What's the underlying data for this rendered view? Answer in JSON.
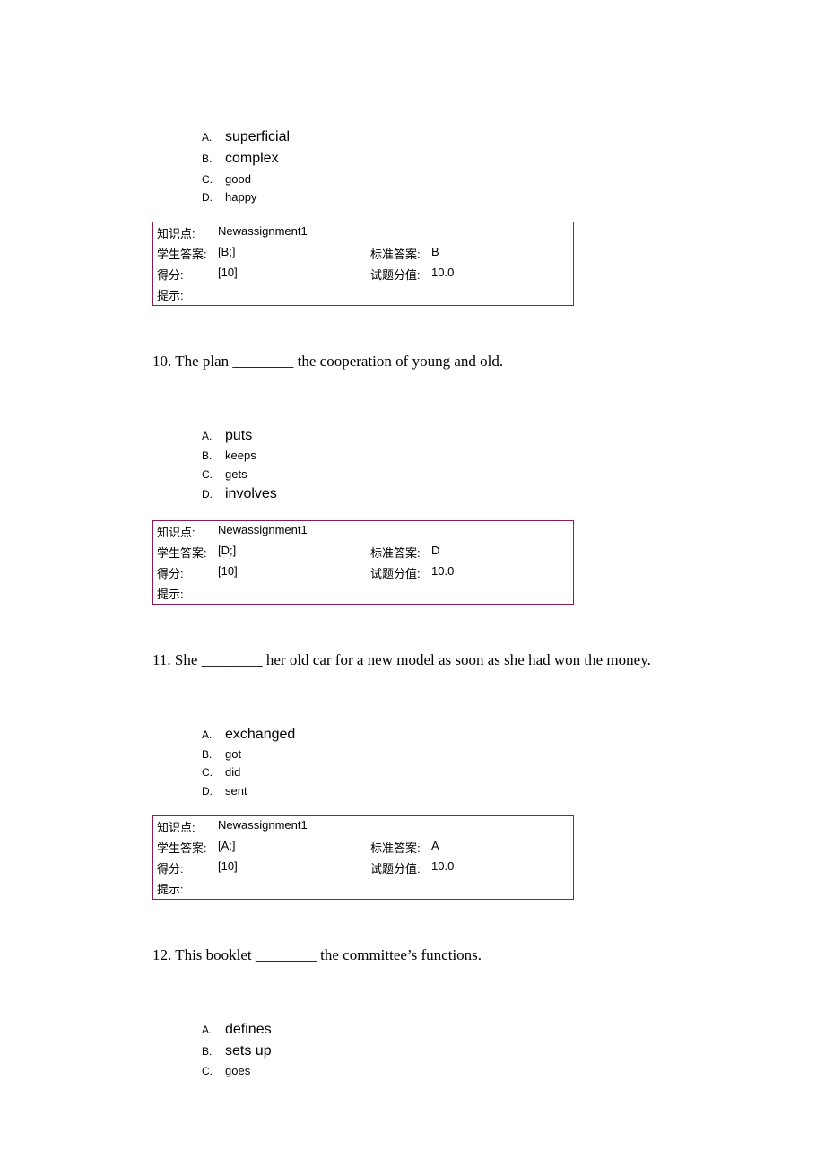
{
  "q9": {
    "opts": [
      {
        "letter": "A.",
        "text": "superficial",
        "large": true
      },
      {
        "letter": "B.",
        "text": "complex",
        "large": true
      },
      {
        "letter": "C.",
        "text": "good",
        "large": false
      },
      {
        "letter": "D.",
        "text": "happy",
        "large": false
      }
    ],
    "box": {
      "kp_label": "知识点:",
      "kp": "Newassignment1",
      "sa_label": "学生答案:",
      "sa": "[B;]",
      "ca_label": "标准答案:",
      "ca": "B",
      "score_label": "得分:",
      "score": "[10]",
      "max_label": "试题分值:",
      "max": "10.0",
      "hint_label": "提示:"
    }
  },
  "q10": {
    "stem": "10. The plan ________ the cooperation of young and old.",
    "opts": [
      {
        "letter": "A.",
        "text": "puts",
        "large": true
      },
      {
        "letter": "B.",
        "text": "keeps",
        "large": false
      },
      {
        "letter": "C.",
        "text": "gets",
        "large": false
      },
      {
        "letter": "D.",
        "text": "involves",
        "large": true
      }
    ],
    "box": {
      "kp_label": "知识点:",
      "kp": "Newassignment1",
      "sa_label": "学生答案:",
      "sa": "[D;]",
      "ca_label": "标准答案:",
      "ca": "D",
      "score_label": "得分:",
      "score": "[10]",
      "max_label": "试题分值:",
      "max": "10.0",
      "hint_label": "提示:"
    }
  },
  "q11": {
    "stem": "11. She ________ her old car for a new model as soon as she had won the money.",
    "opts": [
      {
        "letter": "A.",
        "text": "exchanged",
        "large": true
      },
      {
        "letter": "B.",
        "text": "got",
        "large": false
      },
      {
        "letter": "C.",
        "text": "did",
        "large": false
      },
      {
        "letter": "D.",
        "text": "sent",
        "large": false
      }
    ],
    "box": {
      "kp_label": "知识点:",
      "kp": "Newassignment1",
      "sa_label": "学生答案:",
      "sa": "[A;]",
      "ca_label": "标准答案:",
      "ca": "A",
      "score_label": "得分:",
      "score": "[10]",
      "max_label": "试题分值:",
      "max": "10.0",
      "hint_label": "提示:"
    }
  },
  "q12": {
    "stem": "12. This booklet ________ the committee’s functions.",
    "opts": [
      {
        "letter": "A.",
        "text": "defines",
        "large": true
      },
      {
        "letter": "B.",
        "text": "sets up",
        "large": true
      },
      {
        "letter": "C.",
        "text": "goes",
        "large": false
      }
    ]
  }
}
